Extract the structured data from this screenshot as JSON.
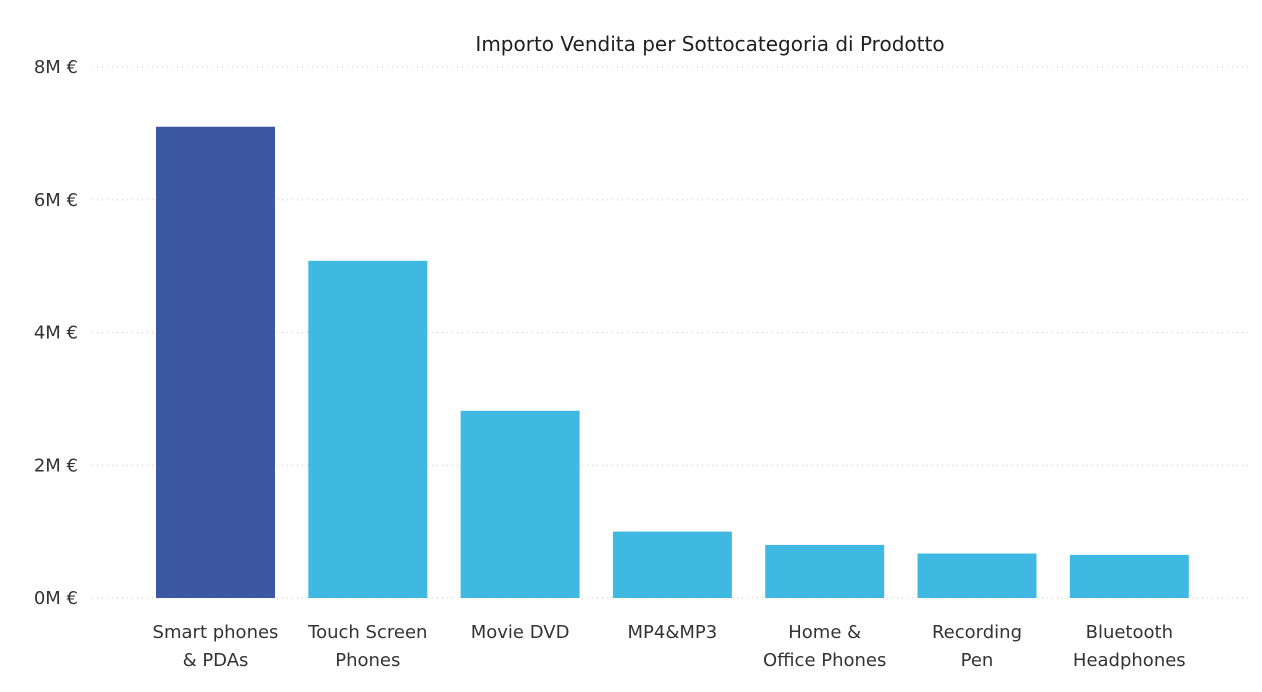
{
  "chart_data": {
    "type": "bar",
    "title": "Importo Vendita per Sottocategoria di Prodotto",
    "xlabel": "",
    "ylabel": "",
    "categories": [
      [
        "Smart phones",
        "& PDAs"
      ],
      [
        "Touch Screen",
        "Phones"
      ],
      [
        "Movie DVD"
      ],
      [
        "MP4&MP3"
      ],
      [
        "Home &",
        "Office Phones"
      ],
      [
        "Recording",
        "Pen"
      ],
      [
        "Bluetooth",
        "Headphones"
      ]
    ],
    "values": [
      7.1,
      5.08,
      2.82,
      1.0,
      0.8,
      0.67,
      0.65
    ],
    "ylim": [
      0,
      8
    ],
    "yticks": [
      0,
      2,
      4,
      6,
      8
    ],
    "ytick_labels": [
      "0M €",
      "2M €",
      "4M €",
      "6M €",
      "8M €"
    ],
    "grid": true,
    "legend": "none",
    "colors": {
      "highlight": "#3c58a3",
      "default": "#40b9e2"
    },
    "highlight_index": 0
  }
}
